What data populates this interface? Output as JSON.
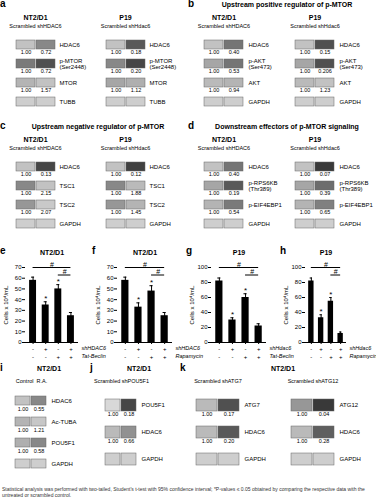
{
  "chart_data": [
    {
      "type": "blot",
      "label": "a",
      "groups": [
        {
          "title": "NT2/D1",
          "subtitle": "Scrambled shHDAC6",
          "bands": [
            {
              "name": "HDAC6",
              "values": [
                1,
                0.72
              ],
              "value_labels": [
                "1.00",
                "0.72"
              ],
              "intensity": [
                0.35,
                0.55
              ]
            },
            {
              "name": "p-MTOR\n(Ser2448)",
              "values": [
                1,
                0.72
              ],
              "value_labels": [
                "1.00",
                "0.72"
              ],
              "intensity": [
                0.6,
                0.75
              ]
            },
            {
              "name": "MTOR",
              "values": [
                1,
                1.57
              ],
              "value_labels": [
                "1.00",
                "1.57"
              ],
              "intensity": [
                0.4,
                0.35
              ]
            },
            {
              "name": "TUBB",
              "intensity": [
                0.3,
                0.3
              ]
            }
          ]
        },
        {
          "title": "P19",
          "subtitle": "Scrambled shHdac6",
          "bands": [
            {
              "name": "HDAC6",
              "values": [
                1,
                0.18
              ],
              "value_labels": [
                "1.00",
                "0.18"
              ],
              "intensity": [
                0.35,
                0.72
              ]
            },
            {
              "name": "p-MTOR\n(Ser2448)",
              "values": [
                1,
                0.2
              ],
              "value_labels": [
                "1.00",
                "0.20"
              ],
              "intensity": [
                0.55,
                0.78
              ]
            },
            {
              "name": "MTOR",
              "values": [
                1,
                1.12
              ],
              "value_labels": [
                "1.00",
                "1.12"
              ],
              "intensity": [
                0.45,
                0.42
              ]
            },
            {
              "name": "TUBB",
              "intensity": [
                0.3,
                0.3
              ]
            }
          ]
        }
      ]
    },
    {
      "type": "blot",
      "label": "b",
      "title": "Upstream positive regulator of p-MTOR",
      "groups": [
        {
          "title": "NT2/D1",
          "subtitle": "Scrambled shHDAC6",
          "bands": [
            {
              "name": "HDAC6",
              "values": [
                1,
                0.4
              ],
              "value_labels": [
                "1.00",
                "0.40"
              ],
              "intensity": [
                0.35,
                0.62
              ]
            },
            {
              "name": "p-AKT\n(Ser473)",
              "values": [
                1,
                0.53
              ],
              "value_labels": [
                "1.00",
                "0.53"
              ],
              "intensity": [
                0.45,
                0.62
              ]
            },
            {
              "name": "AKT",
              "values": [
                1,
                0.94
              ],
              "value_labels": [
                "1.00",
                "0.94"
              ],
              "intensity": [
                0.38,
                0.4
              ]
            },
            {
              "name": "GAPDH",
              "intensity": [
                0.3,
                0.3
              ]
            }
          ]
        },
        {
          "title": "P19",
          "subtitle": "Scrambled shHdac6",
          "bands": [
            {
              "name": "HDAC6",
              "values": [
                1,
                0.15
              ],
              "value_labels": [
                "1.00",
                "0.15"
              ],
              "intensity": [
                0.35,
                0.75
              ]
            },
            {
              "name": "p-AKT\n(Ser473)",
              "values": [
                1,
                0.206
              ],
              "value_labels": [
                "1.00",
                "0.206"
              ],
              "intensity": [
                0.45,
                0.75
              ]
            },
            {
              "name": "AKT",
              "values": [
                1,
                1.23
              ],
              "value_labels": [
                "1.00",
                "1.23"
              ],
              "intensity": [
                0.38,
                0.35
              ]
            },
            {
              "name": "GAPDH",
              "intensity": [
                0.3,
                0.3
              ]
            }
          ]
        }
      ]
    },
    {
      "type": "blot",
      "label": "c",
      "title": "Upstream negative regulator of p-MTOR",
      "groups": [
        {
          "title": "NT2/D1",
          "subtitle": "Scrambled shHDAC6",
          "bands": [
            {
              "name": "HDAC6",
              "values": [
                1,
                0.13
              ],
              "value_labels": [
                "1.00",
                "0.13"
              ],
              "intensity": [
                0.35,
                0.78
              ]
            },
            {
              "name": "TSC1",
              "values": [
                1,
                2.15
              ],
              "value_labels": [
                "1.00",
                "2.15"
              ],
              "intensity": [
                0.55,
                0.35
              ]
            },
            {
              "name": "TSC2",
              "values": [
                1,
                2.07
              ],
              "value_labels": [
                "1.00",
                "2.07"
              ],
              "intensity": [
                0.5,
                0.32
              ]
            },
            {
              "name": "GAPDH",
              "intensity": [
                0.3,
                0.3
              ]
            }
          ]
        },
        {
          "title": "P19",
          "subtitle": "Scrambled shHdac6",
          "bands": [
            {
              "name": "HDAC6",
              "values": [
                1,
                0.12
              ],
              "value_labels": [
                "1.00",
                "0.12"
              ],
              "intensity": [
                0.35,
                0.8
              ]
            },
            {
              "name": "TSC1",
              "values": [
                1,
                1.88
              ],
              "value_labels": [
                "1.00",
                "1.88"
              ],
              "intensity": [
                0.55,
                0.38
              ]
            },
            {
              "name": "TSC2",
              "values": [
                1,
                1.45
              ],
              "value_labels": [
                "1.00",
                "1.45"
              ],
              "intensity": [
                0.5,
                0.4
              ]
            },
            {
              "name": "GAPDH",
              "intensity": [
                0.3,
                0.3
              ]
            }
          ]
        }
      ]
    },
    {
      "type": "blot",
      "label": "d",
      "title": "Downstream effectors of p-MTOR signaling",
      "groups": [
        {
          "title": "NT2/D1",
          "subtitle": "Scrambled shHDAC6",
          "bands": [
            {
              "name": "HDAC6",
              "values": [
                1,
                0.4
              ],
              "value_labels": [
                "1.00",
                "0.40"
              ],
              "intensity": [
                0.35,
                0.62
              ]
            },
            {
              "name": "p-RPS6KB\n(Thr389)",
              "values": [
                1,
                0.19
              ],
              "value_labels": [
                "1.00",
                "0.19"
              ],
              "intensity": [
                0.45,
                0.72
              ]
            },
            {
              "name": "p-EIF4EBP1",
              "values": [
                1,
                0.54
              ],
              "value_labels": [
                "1.00",
                "0.54"
              ],
              "intensity": [
                0.4,
                0.6
              ]
            },
            {
              "name": "GAPDH",
              "intensity": [
                0.3,
                0.3
              ]
            }
          ]
        },
        {
          "title": "P19",
          "subtitle": "Scrambled shHdac6",
          "bands": [
            {
              "name": "HDAC6",
              "values": [
                1,
                0.07
              ],
              "value_labels": [
                "1.00",
                "0.07"
              ],
              "intensity": [
                0.35,
                0.82
              ]
            },
            {
              "name": "p-RPS6KB\n(Thr389)",
              "values": [
                1,
                0.39
              ],
              "value_labels": [
                "1.00",
                "0.39"
              ],
              "intensity": [
                0.45,
                0.65
              ]
            },
            {
              "name": "p-EIF4EBP1",
              "values": [
                1,
                0.65
              ],
              "value_labels": [
                "1.00",
                "0.65"
              ],
              "intensity": [
                0.4,
                0.58
              ]
            },
            {
              "name": "GAPDH",
              "intensity": [
                0.3,
                0.3
              ]
            }
          ]
        }
      ]
    },
    {
      "type": "bar",
      "label": "e",
      "title": "NT2/D1",
      "ylabel": "Cells x 10⁴/mL",
      "categories": [
        null,
        null,
        null,
        null
      ],
      "values": [
        58,
        35,
        50,
        25
      ],
      "errors": [
        3,
        3,
        4,
        3
      ],
      "ylim": [
        0,
        70
      ],
      "yticks": [
        0,
        10,
        20,
        30,
        40,
        50,
        60,
        70
      ],
      "conditions": [
        {
          "name": "shHDAC6",
          "labels": [
            "-",
            "+",
            "-",
            "+"
          ]
        },
        {
          "name": "Tat-Beclin",
          "labels": [
            "-",
            "-",
            "+",
            "+"
          ]
        }
      ],
      "annotations": [
        {
          "text": "*",
          "bar": 1
        },
        {
          "text": "*",
          "bar": 2
        },
        {
          "text": "#",
          "from": 0,
          "to": 3
        },
        {
          "text": "#",
          "from": 2,
          "to": 3
        }
      ]
    },
    {
      "type": "bar",
      "label": "f",
      "title": "NT2/D1",
      "ylabel": "Cells x 10⁴/mL",
      "categories": [
        null,
        null,
        null,
        null
      ],
      "values": [
        58,
        33,
        48,
        25
      ],
      "errors": [
        3,
        4,
        5,
        3
      ],
      "ylim": [
        0,
        70
      ],
      "yticks": [
        0,
        10,
        20,
        30,
        40,
        50,
        60,
        70
      ],
      "conditions": [
        {
          "name": "shHDAC6",
          "labels": [
            "-",
            "+",
            "-",
            "+"
          ]
        },
        {
          "name": "Rapamycin",
          "labels": [
            "-",
            "-",
            "+",
            "+"
          ]
        }
      ],
      "annotations": [
        {
          "text": "*",
          "bar": 1
        },
        {
          "text": "*",
          "bar": 2
        },
        {
          "text": "#",
          "from": 0,
          "to": 3
        },
        {
          "text": "#",
          "from": 2,
          "to": 3
        }
      ]
    },
    {
      "type": "bar",
      "label": "g",
      "title": "P19",
      "ylabel": "Cells x 10⁴/mL",
      "categories": [
        null,
        null,
        null,
        null
      ],
      "values": [
        82,
        30,
        60,
        22
      ],
      "errors": [
        4,
        3,
        5,
        3
      ],
      "ylim": [
        0,
        100
      ],
      "yticks": [
        0,
        20,
        40,
        60,
        80,
        100
      ],
      "conditions": [
        {
          "name": "shHdac6",
          "labels": [
            "-",
            "+",
            "-",
            "+"
          ]
        },
        {
          "name": "Tat-Beclin",
          "labels": [
            "-",
            "-",
            "+",
            "+"
          ]
        }
      ],
      "annotations": [
        {
          "text": "*",
          "bar": 1
        },
        {
          "text": "*",
          "bar": 2
        },
        {
          "text": "#",
          "from": 0,
          "to": 3
        },
        {
          "text": "#",
          "from": 2,
          "to": 3
        }
      ]
    },
    {
      "type": "bar",
      "label": "h",
      "title": "P19",
      "ylabel": "Cells x 10⁴/mL",
      "categories": [
        null,
        null,
        null,
        null
      ],
      "values": [
        82,
        33,
        55,
        12
      ],
      "errors": [
        4,
        4,
        5,
        2
      ],
      "ylim": [
        0,
        100
      ],
      "yticks": [
        0,
        20,
        40,
        60,
        80,
        100
      ],
      "conditions": [
        {
          "name": "shHdac6",
          "labels": [
            "-",
            "+",
            "-",
            "+"
          ]
        },
        {
          "name": "Rapamycin",
          "labels": [
            "-",
            "-",
            "+",
            "+"
          ]
        }
      ],
      "annotations": [
        {
          "text": "*",
          "bar": 1
        },
        {
          "text": "*",
          "bar": 2
        },
        {
          "text": "#",
          "from": 0,
          "to": 3
        },
        {
          "text": "#",
          "from": 2,
          "to": 3
        }
      ]
    },
    {
      "type": "blot",
      "label": "i",
      "title": "NT2/D1",
      "groups": [
        {
          "subtitle": "Control  R.A.",
          "bands": [
            {
              "name": "HDAC6",
              "values": [
                1,
                0.55
              ],
              "value_labels": [
                "1.00",
                "0.55"
              ],
              "intensity": [
                0.35,
                0.55
              ]
            },
            {
              "name": "Ac-TUBA",
              "values": [
                1,
                1.21
              ],
              "value_labels": [
                "1.00",
                "1.21"
              ],
              "intensity": [
                0.4,
                0.33
              ]
            },
            {
              "name": "POU5F1",
              "values": [
                1,
                0.58
              ],
              "value_labels": [
                "1.00",
                "0.58"
              ],
              "intensity": [
                0.42,
                0.55
              ]
            },
            {
              "name": "GAPDH",
              "intensity": [
                0.3,
                0.3
              ]
            }
          ]
        }
      ]
    },
    {
      "type": "blot",
      "label": "j",
      "title": "NT2/D1",
      "groups": [
        {
          "subtitle": "Scrambled shPOU5F1",
          "bands": [
            {
              "name": "POU5F1",
              "values": [
                1,
                0.18
              ],
              "value_labels": [
                "1.00",
                "0.18"
              ],
              "intensity": [
                0.25,
                0.78
              ]
            },
            {
              "name": "HDAC6",
              "values": [
                1,
                0.66
              ],
              "value_labels": [
                "1.00",
                "0.66"
              ],
              "intensity": [
                0.38,
                0.52
              ]
            },
            {
              "name": "GAPDH",
              "intensity": [
                0.3,
                0.3
              ]
            }
          ]
        }
      ]
    },
    {
      "type": "blot",
      "label": "k",
      "title": "NT2/D1",
      "groups": [
        {
          "subtitle": "Scrambled shATG7",
          "bands": [
            {
              "name": "ATG7",
              "values": [
                1,
                0.17
              ],
              "value_labels": [
                "1.00",
                "0.17"
              ],
              "intensity": [
                0.38,
                0.75
              ]
            },
            {
              "name": "HDAC6",
              "values": [
                1,
                0.2
              ],
              "value_labels": [
                "1.00",
                "0.20"
              ],
              "intensity": [
                0.38,
                0.72
              ]
            },
            {
              "name": "GAPDH",
              "intensity": [
                0.3,
                0.3
              ]
            }
          ]
        },
        {
          "subtitle": "Scrambled shATG12",
          "bands": [
            {
              "name": "ATG12",
              "values": [
                1,
                0.04
              ],
              "value_labels": [
                "1.00",
                "0.04"
              ],
              "intensity": [
                0.5,
                0.82
              ]
            },
            {
              "name": "HDAC6",
              "values": [
                1,
                0.28
              ],
              "value_labels": [
                "1.00",
                "0.28"
              ],
              "intensity": [
                0.38,
                0.7
              ]
            },
            {
              "name": "GAPDH",
              "intensity": [
                0.3,
                0.3
              ]
            }
          ]
        }
      ]
    }
  ],
  "caption": "Statistical analysis was performed with two-tailed, Student's t-test with 95% confidence interval; *P-values ≤ 0.05 obtained by comparing the respective data with the untreated or scrambled control."
}
